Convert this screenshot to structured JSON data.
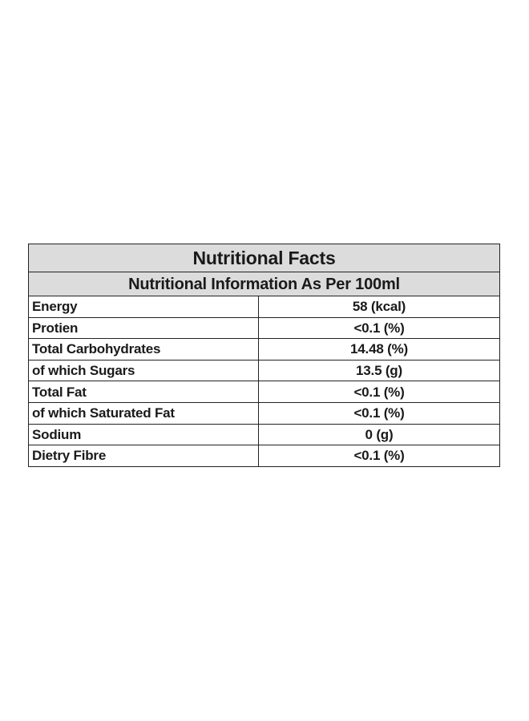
{
  "title": "Nutritional Facts",
  "subtitle": "Nutritional Information As Per 100ml",
  "rows": [
    {
      "label": "Energy",
      "value": "58 (kcal)"
    },
    {
      "label": "Protien",
      "value": "<0.1 (%)"
    },
    {
      "label": "Total Carbohydrates",
      "value": "14.48 (%)"
    },
    {
      "label": "of which Sugars",
      "value": "13.5 (g)"
    },
    {
      "label": "Total Fat",
      "value": "<0.1 (%)"
    },
    {
      "label": "of which Saturated Fat",
      "value": "<0.1 (%)"
    },
    {
      "label": "Sodium",
      "value": "0 (g)"
    },
    {
      "label": "Dietry Fibre",
      "value": "<0.1 (%)"
    }
  ],
  "colors": {
    "header_background": "#dcdcdc",
    "border": "#222222",
    "text": "#1a1a1a"
  }
}
